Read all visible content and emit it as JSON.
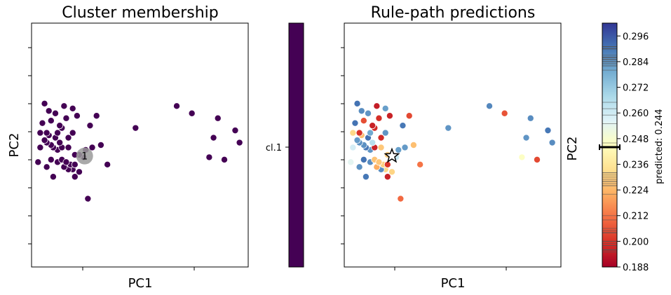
{
  "chart_data": [
    {
      "type": "scatter",
      "title": "Cluster membership",
      "xlabel": "PC1",
      "ylabel": "PC2",
      "xlim": [
        0,
        1
      ],
      "ylim": [
        0,
        1
      ],
      "color": "#440154",
      "colorbar": {
        "labels": [
          "cl.1"
        ],
        "color": "#440154"
      },
      "highlight": {
        "x": 0.245,
        "y": 0.455,
        "label": "1"
      },
      "points": [
        [
          0.26,
          0.28
        ],
        [
          0.1,
          0.37
        ],
        [
          0.2,
          0.37
        ],
        [
          0.19,
          0.4
        ],
        [
          0.17,
          0.4
        ],
        [
          0.07,
          0.41
        ],
        [
          0.15,
          0.41
        ],
        [
          0.18,
          0.42
        ],
        [
          0.2,
          0.42
        ],
        [
          0.12,
          0.43
        ],
        [
          0.09,
          0.44
        ],
        [
          0.14,
          0.44
        ],
        [
          0.24,
          0.45
        ],
        [
          0.22,
          0.46
        ],
        [
          0.2,
          0.46
        ],
        [
          0.25,
          0.48
        ],
        [
          0.12,
          0.48
        ],
        [
          0.1,
          0.49
        ],
        [
          0.14,
          0.49
        ],
        [
          0.17,
          0.49
        ],
        [
          0.09,
          0.5
        ],
        [
          0.07,
          0.51
        ],
        [
          0.13,
          0.51
        ],
        [
          0.06,
          0.52
        ],
        [
          0.11,
          0.53
        ],
        [
          0.17,
          0.53
        ],
        [
          0.08,
          0.54
        ],
        [
          0.04,
          0.55
        ],
        [
          0.07,
          0.55
        ],
        [
          0.12,
          0.55
        ],
        [
          0.14,
          0.57
        ],
        [
          0.05,
          0.59
        ],
        [
          0.09,
          0.6
        ],
        [
          0.16,
          0.61
        ],
        [
          0.11,
          0.63
        ],
        [
          0.06,
          0.67
        ],
        [
          0.15,
          0.66
        ],
        [
          0.19,
          0.65
        ],
        [
          0.21,
          0.62
        ],
        [
          0.27,
          0.58
        ],
        [
          0.3,
          0.62
        ],
        [
          0.32,
          0.5
        ],
        [
          0.28,
          0.49
        ],
        [
          0.22,
          0.39
        ],
        [
          0.16,
          0.43
        ],
        [
          0.13,
          0.58
        ],
        [
          0.08,
          0.64
        ],
        [
          0.19,
          0.55
        ],
        [
          0.03,
          0.43
        ],
        [
          0.35,
          0.42
        ],
        [
          0.48,
          0.57
        ],
        [
          0.67,
          0.66
        ],
        [
          0.74,
          0.63
        ],
        [
          0.84,
          0.53
        ],
        [
          0.86,
          0.61
        ],
        [
          0.94,
          0.56
        ],
        [
          0.96,
          0.51
        ],
        [
          0.89,
          0.44
        ],
        [
          0.82,
          0.45
        ],
        [
          0.04,
          0.49
        ]
      ]
    },
    {
      "type": "scatter",
      "title": "Rule-path predictions",
      "xlabel": "PC1",
      "ylabel": "PC2",
      "xlim": [
        0,
        1
      ],
      "ylim": [
        0,
        1
      ],
      "star": {
        "x": 0.22,
        "y": 0.455
      },
      "colorbar": {
        "label": "predicted: 0.244",
        "min": 0.188,
        "max": 0.302,
        "ticks": [
          "0.188",
          "0.200",
          "0.212",
          "0.224",
          "0.236",
          "0.248",
          "0.260",
          "0.272",
          "0.284",
          "0.296"
        ],
        "marker_value": 0.244,
        "colors": [
          "#a50026",
          "#d73027",
          "#f46d43",
          "#fdae61",
          "#fee090",
          "#ffffbf",
          "#e0f3f8",
          "#abd9e9",
          "#74add1",
          "#4575b4",
          "#313695"
        ]
      },
      "points": [
        [
          0.26,
          0.28,
          0.21
        ],
        [
          0.1,
          0.37,
          0.29
        ],
        [
          0.2,
          0.37,
          0.196
        ],
        [
          0.19,
          0.4,
          0.232
        ],
        [
          0.17,
          0.4,
          0.286
        ],
        [
          0.07,
          0.41,
          0.285
        ],
        [
          0.15,
          0.41,
          0.222
        ],
        [
          0.18,
          0.42,
          0.23
        ],
        [
          0.2,
          0.42,
          0.2
        ],
        [
          0.12,
          0.43,
          0.286
        ],
        [
          0.09,
          0.44,
          0.291
        ],
        [
          0.14,
          0.44,
          0.227
        ],
        [
          0.24,
          0.45,
          0.262
        ],
        [
          0.22,
          0.46,
          0.204
        ],
        [
          0.2,
          0.46,
          0.229
        ],
        [
          0.25,
          0.48,
          0.282
        ],
        [
          0.12,
          0.48,
          0.284
        ],
        [
          0.1,
          0.49,
          0.29
        ],
        [
          0.14,
          0.49,
          0.196
        ],
        [
          0.17,
          0.49,
          0.228
        ],
        [
          0.09,
          0.5,
          0.285
        ],
        [
          0.07,
          0.51,
          0.285
        ],
        [
          0.13,
          0.51,
          0.265
        ],
        [
          0.06,
          0.52,
          0.283
        ],
        [
          0.11,
          0.53,
          0.291
        ],
        [
          0.17,
          0.53,
          0.198
        ],
        [
          0.08,
          0.54,
          0.226
        ],
        [
          0.04,
          0.55,
          0.232
        ],
        [
          0.07,
          0.55,
          0.2
        ],
        [
          0.12,
          0.55,
          0.28
        ],
        [
          0.14,
          0.57,
          0.198
        ],
        [
          0.05,
          0.59,
          0.291
        ],
        [
          0.09,
          0.6,
          0.205
        ],
        [
          0.16,
          0.61,
          0.199
        ],
        [
          0.11,
          0.63,
          0.284
        ],
        [
          0.06,
          0.67,
          0.291
        ],
        [
          0.15,
          0.66,
          0.195
        ],
        [
          0.19,
          0.65,
          0.282
        ],
        [
          0.21,
          0.62,
          0.196
        ],
        [
          0.27,
          0.58,
          0.29
        ],
        [
          0.3,
          0.62,
          0.204
        ],
        [
          0.32,
          0.5,
          0.226
        ],
        [
          0.28,
          0.49,
          0.283
        ],
        [
          0.22,
          0.39,
          0.231
        ],
        [
          0.16,
          0.43,
          0.228
        ],
        [
          0.13,
          0.58,
          0.196
        ],
        [
          0.08,
          0.64,
          0.286
        ],
        [
          0.19,
          0.55,
          0.284
        ],
        [
          0.03,
          0.43,
          0.255
        ],
        [
          0.35,
          0.42,
          0.212
        ],
        [
          0.48,
          0.57,
          0.284
        ],
        [
          0.67,
          0.66,
          0.287
        ],
        [
          0.74,
          0.63,
          0.206
        ],
        [
          0.84,
          0.53,
          0.284
        ],
        [
          0.86,
          0.61,
          0.286
        ],
        [
          0.94,
          0.56,
          0.29
        ],
        [
          0.96,
          0.51,
          0.286
        ],
        [
          0.89,
          0.44,
          0.204
        ],
        [
          0.82,
          0.45,
          0.246
        ],
        [
          0.04,
          0.49,
          0.259
        ]
      ]
    }
  ]
}
